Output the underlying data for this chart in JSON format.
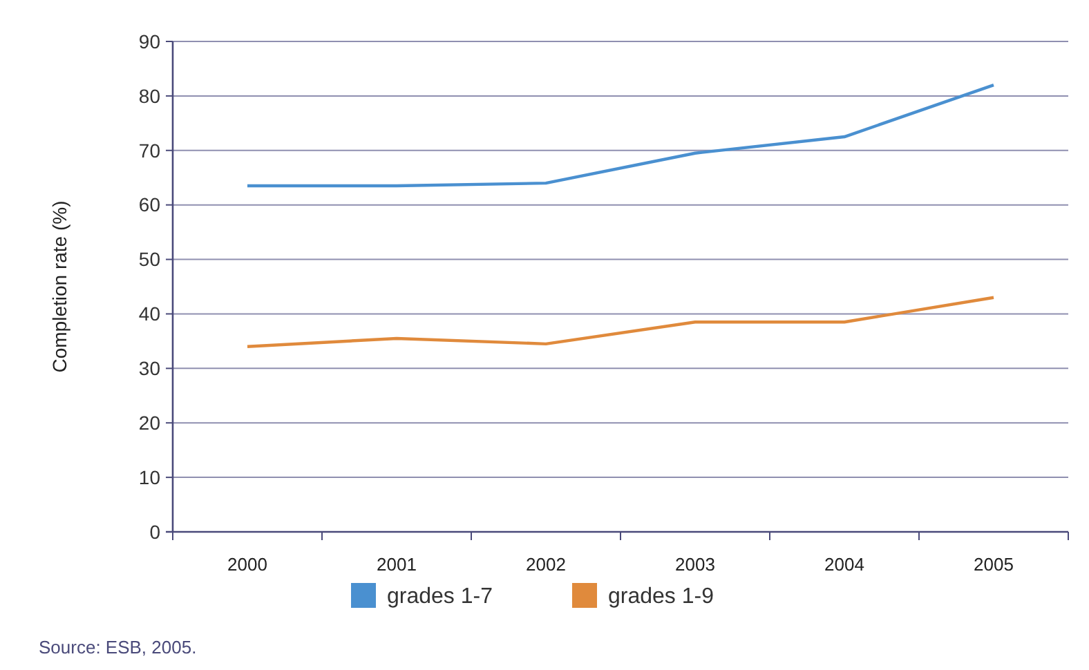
{
  "chart_data": {
    "type": "line",
    "ylabel": "Completion rate (%)",
    "categories": [
      "2000",
      "2001",
      "2002",
      "2003",
      "2004",
      "2005"
    ],
    "series": [
      {
        "name": "grades 1-7",
        "color": "#4a90d0",
        "values": [
          63.5,
          63.5,
          64,
          69.5,
          72.5,
          82
        ]
      },
      {
        "name": "grades 1-9",
        "color": "#e08a3c",
        "values": [
          34,
          35.5,
          34.5,
          38.5,
          38.5,
          43
        ]
      }
    ],
    "ylim": [
      0,
      90
    ],
    "yticks": [
      0,
      10,
      20,
      30,
      40,
      50,
      60,
      70,
      80,
      90
    ],
    "grid": "y",
    "legend": "bottom",
    "marker": "none",
    "annotations": [
      "Source: ESB, 2005."
    ]
  }
}
